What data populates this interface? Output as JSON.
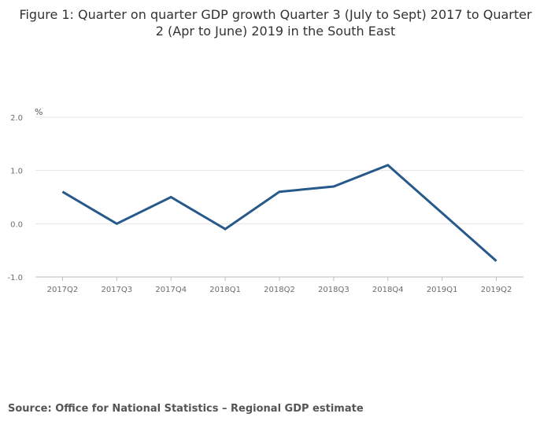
{
  "title": "Figure 1: Quarter on quarter GDP growth Quarter 3 (July to Sept) 2017 to Quarter 2 (Apr to June) 2019 in the South East",
  "source": "Source: Office for National Statistics – Regional GDP estimate",
  "chart_data": {
    "type": "line",
    "title": "Figure 1: Quarter on quarter GDP growth Quarter 3 (July to Sept) 2017 to Quarter 2 (Apr to June) 2019 in the South East",
    "xlabel": "",
    "ylabel": "%",
    "categories": [
      "2017Q2",
      "2017Q3",
      "2017Q4",
      "2018Q1",
      "2018Q2",
      "2018Q3",
      "2018Q4",
      "2019Q1",
      "2019Q2"
    ],
    "series": [
      {
        "name": "Quarter on quarter GDP growth",
        "values": [
          0.6,
          0.0,
          0.5,
          -0.1,
          0.6,
          0.7,
          1.1,
          0.2,
          -0.7
        ],
        "color": "#27598a"
      }
    ],
    "yticks": [
      "2.0",
      "1.0",
      "0.0",
      "-1.0"
    ],
    "ylim": [
      -1.0,
      2.0
    ],
    "grid": true,
    "legend": "none"
  }
}
